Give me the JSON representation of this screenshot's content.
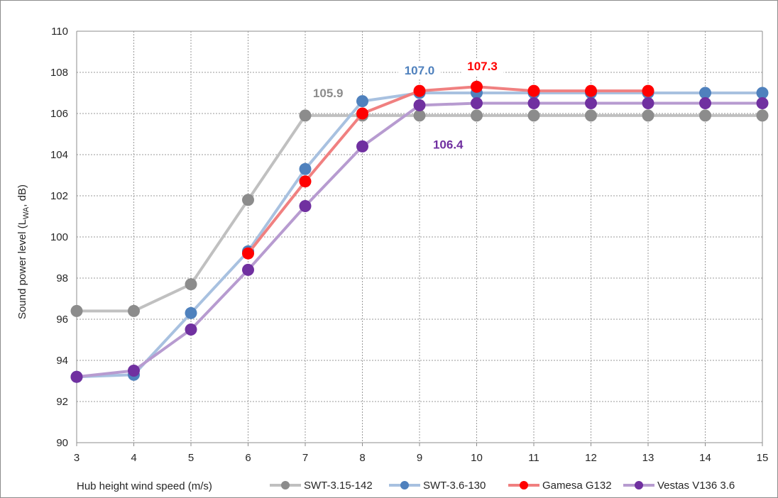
{
  "chart_data": {
    "type": "line",
    "xlabel": "Hub height wind speed (m/s)",
    "ylabel": {
      "main": "Sound power level (L",
      "sub": "WA",
      "rest": ", dB)"
    },
    "xlim": [
      3,
      15
    ],
    "ylim": [
      90,
      110
    ],
    "x_ticks": [
      3,
      4,
      5,
      6,
      7,
      8,
      9,
      10,
      11,
      12,
      13,
      14,
      15
    ],
    "y_ticks": [
      90,
      92,
      94,
      96,
      98,
      100,
      102,
      104,
      106,
      108,
      110
    ],
    "grid": true,
    "legend_position": "bottom",
    "series": [
      {
        "name": "SWT-3.15-142",
        "line_color": "#c0c0c0",
        "marker_color": "#8c8c8c",
        "x": [
          3,
          4,
          5,
          6,
          7,
          8,
          9,
          10,
          11,
          12,
          13,
          14,
          15
        ],
        "y": [
          96.4,
          96.4,
          97.7,
          101.8,
          105.9,
          105.9,
          105.9,
          105.9,
          105.9,
          105.9,
          105.9,
          105.9,
          105.9
        ]
      },
      {
        "name": "SWT-3.6-130",
        "line_color": "#a8c1e0",
        "marker_color": "#4f81bd",
        "x": [
          3,
          4,
          5,
          6,
          7,
          8,
          9,
          10,
          11,
          12,
          13,
          14,
          15
        ],
        "y": [
          93.2,
          93.3,
          96.3,
          99.3,
          103.3,
          106.6,
          107.0,
          107.0,
          107.0,
          107.0,
          107.0,
          107.0,
          107.0
        ]
      },
      {
        "name": "Gamesa G132",
        "line_color": "#f08080",
        "marker_color": "#ff0000",
        "x": [
          6,
          7,
          8,
          9,
          10,
          11,
          12,
          13
        ],
        "y": [
          99.2,
          102.7,
          106.0,
          107.1,
          107.3,
          107.1,
          107.1,
          107.1
        ]
      },
      {
        "name": "Vestas V136 3.6",
        "line_color": "#b79bd0",
        "marker_color": "#7030a0",
        "x": [
          3,
          4,
          5,
          6,
          7,
          8,
          9,
          10,
          11,
          12,
          13,
          14,
          15
        ],
        "y": [
          93.2,
          93.5,
          95.5,
          98.4,
          101.5,
          104.4,
          106.4,
          106.5,
          106.5,
          106.5,
          106.5,
          106.5,
          106.5
        ]
      }
    ],
    "annotations": [
      {
        "text": "105.9",
        "color": "#8c8c8c",
        "x": 7.4,
        "y": 106.8
      },
      {
        "text": "107.0",
        "color": "#4f81bd",
        "x": 9.0,
        "y": 107.9
      },
      {
        "text": "107.3",
        "color": "#ff0000",
        "x": 10.1,
        "y": 108.1
      },
      {
        "text": "106.4",
        "color": "#7030a0",
        "x": 9.5,
        "y": 104.3
      }
    ]
  }
}
